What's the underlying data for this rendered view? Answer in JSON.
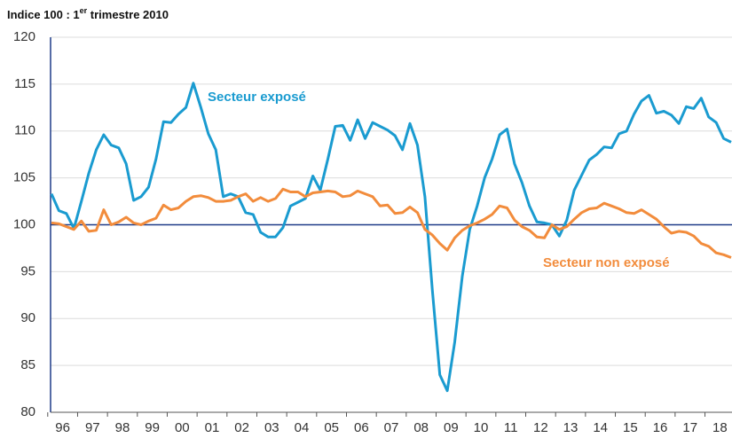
{
  "chart_data": {
    "type": "line",
    "title_parts": [
      "Indice 100 : 1",
      "er",
      " trimestre 2010"
    ],
    "categories": [
      "96",
      null,
      null,
      null,
      "97",
      null,
      null,
      null,
      "98",
      null,
      null,
      null,
      "99",
      null,
      null,
      null,
      "00",
      null,
      null,
      null,
      "01",
      null,
      null,
      null,
      "02",
      null,
      null,
      null,
      "03",
      null,
      null,
      null,
      "04",
      null,
      null,
      null,
      "05",
      null,
      null,
      null,
      "06",
      null,
      null,
      null,
      "07",
      null,
      null,
      null,
      "08",
      null,
      null,
      null,
      "09",
      null,
      null,
      null,
      "10",
      null,
      null,
      null,
      "11",
      null,
      null,
      null,
      "12",
      null,
      null,
      null,
      "13",
      null,
      null,
      null,
      "14",
      null,
      null,
      null,
      "15",
      null,
      null,
      null,
      "16",
      null,
      null,
      null,
      "17",
      null,
      null,
      null,
      "18",
      null,
      null,
      null
    ],
    "series": [
      {
        "name": "Secteur exposé",
        "color": "#1a9bd0",
        "values": [
          103.3,
          101.5,
          101.2,
          99.6,
          102.5,
          105.5,
          108,
          109.6,
          108.5,
          108.2,
          106.5,
          102.6,
          103,
          104,
          107,
          111,
          110.9,
          111.8,
          112.5,
          115.1,
          112.5,
          109.7,
          108,
          103,
          103.3,
          103,
          101.3,
          101.1,
          99.2,
          98.7,
          98.7,
          99.7,
          102,
          102.4,
          102.8,
          105.2,
          103.7,
          107,
          110.5,
          110.6,
          109,
          111.2,
          109.2,
          110.9,
          110.5,
          110.1,
          109.5,
          108,
          110.8,
          108.5,
          103,
          93,
          84,
          82.3,
          87.5,
          94.5,
          99.5,
          102,
          105,
          107,
          109.6,
          110.2,
          106.5,
          104.5,
          102,
          100.3,
          100.2,
          100,
          98.8,
          100.5,
          103.7,
          105.3,
          106.9,
          107.5,
          108.3,
          108.2,
          109.7,
          110,
          111.8,
          113.2,
          113.8,
          111.9,
          112.1,
          111.7,
          110.8,
          112.6,
          112.4,
          113.5,
          111.5,
          110.9,
          109.2,
          108.8
        ]
      },
      {
        "name": "Secteur non exposé",
        "color": "#f28c3c",
        "values": [
          100.2,
          100.1,
          99.8,
          99.5,
          100.4,
          99.3,
          99.4,
          101.6,
          100,
          100.3,
          100.8,
          100.2,
          100,
          100.4,
          100.7,
          102.1,
          101.6,
          101.8,
          102.5,
          103,
          103.1,
          102.9,
          102.5,
          102.5,
          102.6,
          103,
          103.3,
          102.5,
          102.9,
          102.5,
          102.8,
          103.8,
          103.5,
          103.5,
          103,
          103.4,
          103.5,
          103.6,
          103.5,
          103,
          103.1,
          103.6,
          103.3,
          103,
          102,
          102.1,
          101.2,
          101.3,
          101.9,
          101.3,
          99.5,
          98.9,
          98,
          97.3,
          98.6,
          99.4,
          99.9,
          100.2,
          100.6,
          101.1,
          102,
          101.8,
          100.5,
          99.8,
          99.4,
          98.7,
          98.6,
          100,
          99.5,
          99.8,
          100.6,
          101.3,
          101.7,
          101.8,
          102.3,
          102,
          101.7,
          101.3,
          101.2,
          101.6,
          101.1,
          100.6,
          99.8,
          99.1,
          99.3,
          99.2,
          98.8,
          98,
          97.7,
          97,
          96.8,
          96.5
        ]
      }
    ],
    "reference_line": 100,
    "reference_color": "#1f3c88",
    "ylim": [
      80,
      120
    ],
    "yticks": [
      80,
      85,
      90,
      95,
      100,
      105,
      110,
      115,
      120
    ],
    "grid": true
  }
}
